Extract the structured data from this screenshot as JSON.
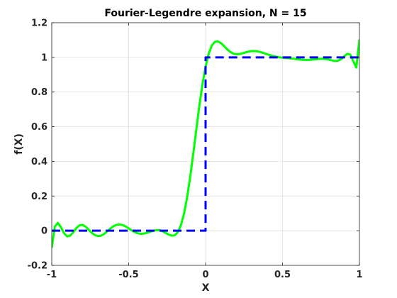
{
  "chart_data": {
    "type": "line",
    "title": "Fourier-Legendre expansion, N = 15",
    "xlabel": "X",
    "ylabel": "f(X)",
    "xlim": [
      -1,
      1
    ],
    "ylim": [
      -0.2,
      1.2
    ],
    "xticks": [
      -1,
      -0.5,
      0,
      0.5,
      1
    ],
    "xtick_labels": [
      "-1",
      "-0.5",
      "0",
      "0.5",
      "1"
    ],
    "yticks": [
      -0.2,
      0,
      0.2,
      0.4,
      0.6,
      0.8,
      1,
      1.2
    ],
    "ytick_labels": [
      "-0.2",
      "0",
      "0.2",
      "0.4",
      "0.6",
      "0.8",
      "1",
      "1.2"
    ],
    "grid": true,
    "series": [
      {
        "style": "solid",
        "color": "#00ff00",
        "x": [
          -1,
          -0.98,
          -0.96,
          -0.94,
          -0.92,
          -0.9,
          -0.88,
          -0.86,
          -0.84,
          -0.82,
          -0.8,
          -0.78,
          -0.76,
          -0.74,
          -0.72,
          -0.7,
          -0.68,
          -0.66,
          -0.64,
          -0.62,
          -0.6,
          -0.58,
          -0.56,
          -0.54,
          -0.52,
          -0.5,
          -0.48,
          -0.46,
          -0.44,
          -0.42,
          -0.4,
          -0.38,
          -0.36,
          -0.34,
          -0.32,
          -0.3,
          -0.28,
          -0.26,
          -0.24,
          -0.22,
          -0.2,
          -0.18,
          -0.16,
          -0.14,
          -0.12,
          -0.1,
          -0.08,
          -0.06,
          -0.04,
          -0.02,
          0,
          0.02,
          0.04,
          0.06,
          0.08,
          0.1,
          0.12,
          0.14,
          0.16,
          0.18,
          0.2,
          0.22,
          0.24,
          0.26,
          0.28,
          0.3,
          0.32,
          0.34,
          0.36,
          0.38,
          0.4,
          0.42,
          0.44,
          0.46,
          0.48,
          0.5,
          0.52,
          0.54,
          0.56,
          0.58,
          0.6,
          0.62,
          0.64,
          0.66,
          0.68,
          0.7,
          0.72,
          0.74,
          0.76,
          0.78,
          0.8,
          0.82,
          0.84,
          0.86,
          0.88,
          0.9,
          0.92,
          0.94,
          0.96,
          0.98,
          1
        ],
        "y": [
          -0.0996,
          0.0238,
          0.0452,
          0.0197,
          -0.0147,
          -0.0332,
          -0.0286,
          -0.0084,
          0.0152,
          0.0308,
          0.0334,
          0.0234,
          0.0062,
          -0.0117,
          -0.0252,
          -0.0312,
          -0.0288,
          -0.0189,
          -0.0043,
          0.0114,
          0.0248,
          0.0335,
          0.0362,
          0.0328,
          0.0246,
          0.0134,
          0.0019,
          -0.0082,
          -0.0151,
          -0.0178,
          -0.0164,
          -0.0118,
          -0.0058,
          -0.0003,
          0.003,
          0.0024,
          -0.0031,
          -0.0123,
          -0.0224,
          -0.0289,
          -0.0263,
          -0.008,
          0.0322,
          0.0989,
          0.1927,
          0.3103,
          0.4448,
          0.5864,
          0.7239,
          0.8466,
          0.947,
          1.0209,
          1.0675,
          1.0897,
          1.0925,
          1.0823,
          1.0651,
          1.0468,
          1.0316,
          1.0218,
          1.0179,
          1.019,
          1.0234,
          1.0289,
          1.0336,
          1.0363,
          1.0365,
          1.0341,
          1.0298,
          1.0242,
          1.0181,
          1.0124,
          1.0074,
          1.0035,
          1.0006,
          0.9985,
          0.9968,
          0.9951,
          0.9932,
          0.991,
          0.9888,
          0.9868,
          0.9855,
          0.9852,
          0.9859,
          0.9875,
          0.9896,
          0.9913,
          0.9918,
          0.9905,
          0.9871,
          0.9827,
          0.9794,
          0.9806,
          0.9893,
          1.0052,
          1.0198,
          1.0166,
          0.9786,
          0.9414,
          1.104
        ]
      },
      {
        "style": "dashed",
        "color": "#0000ff",
        "x": [
          -1,
          0,
          0,
          1
        ],
        "y": [
          0,
          0,
          1,
          1
        ]
      }
    ]
  }
}
